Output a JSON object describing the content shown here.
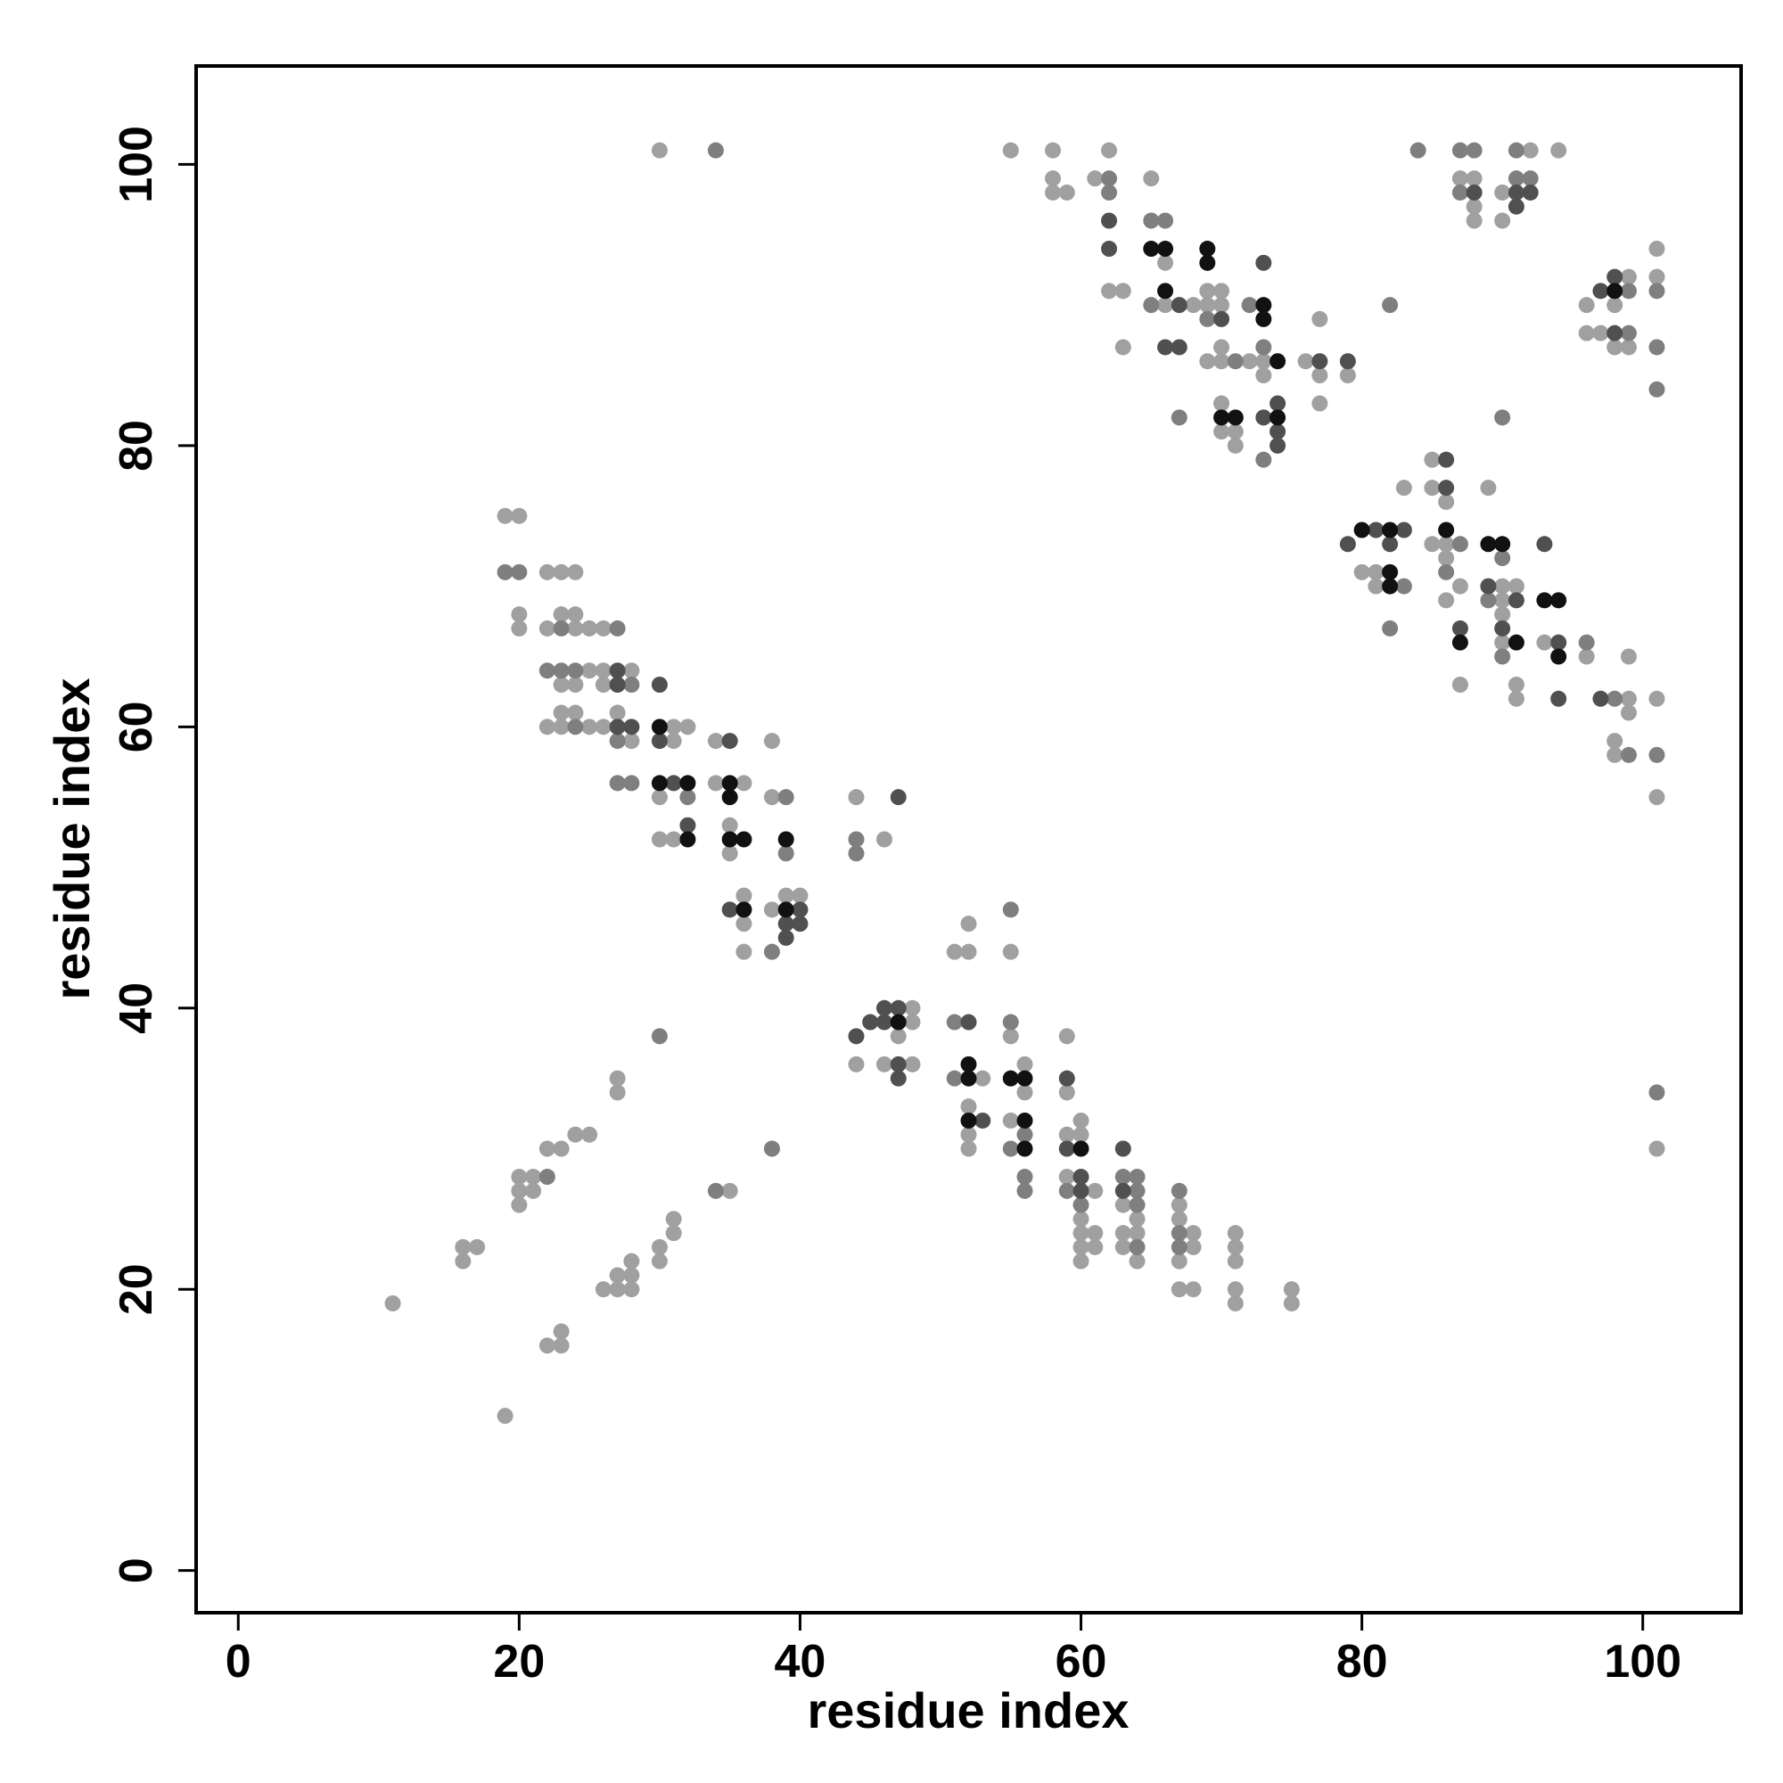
{
  "chart_data": {
    "type": "scatter",
    "x_label": "residue index",
    "y_label": "residue index",
    "xlim": [
      -3,
      107
    ],
    "ylim": [
      -3,
      107
    ],
    "xticks": [
      0,
      20,
      40,
      60,
      80,
      100
    ],
    "yticks": [
      0,
      20,
      40,
      60,
      80,
      100
    ],
    "grid": false,
    "series": [
      {
        "color": "#a0a0a0",
        "x": [
          30,
          55,
          58,
          62,
          92,
          94,
          58,
          61,
          65,
          87,
          88,
          58,
          59,
          90,
          88,
          88,
          90,
          101,
          66,
          99,
          101,
          62,
          63,
          69,
          70,
          66,
          68,
          69,
          70,
          96,
          98,
          77,
          96,
          97,
          63,
          70,
          98,
          99,
          69,
          70,
          72,
          73,
          76,
          73,
          77,
          79,
          70,
          77,
          70,
          71,
          71,
          85,
          83,
          85,
          89,
          86,
          19,
          20,
          85,
          86,
          86,
          22,
          23,
          24,
          80,
          81,
          81,
          87,
          90,
          91,
          86,
          90,
          20,
          23,
          24,
          90,
          20,
          22,
          24,
          25,
          26,
          90,
          93,
          96,
          99,
          25,
          26,
          28,
          23,
          24,
          26,
          87,
          91,
          91,
          99,
          101,
          23,
          24,
          27,
          99,
          22,
          23,
          25,
          26,
          31,
          32,
          28,
          31,
          34,
          38,
          98,
          98,
          34,
          36,
          30,
          38,
          44,
          101,
          35,
          30,
          31,
          46,
          35,
          36,
          39,
          40,
          38,
          36,
          52,
          36,
          51,
          52,
          55,
          48,
          48,
          47,
          55,
          59,
          44,
          46,
          48,
          56,
          27,
          53,
          27,
          56,
          59,
          52,
          55,
          60,
          52,
          59,
          60,
          24,
          25,
          22,
          23,
          52,
          101,
          20,
          21,
          59,
          20,
          21,
          35,
          61,
          20,
          63,
          67,
          31,
          60,
          64,
          67,
          31,
          60,
          61,
          63,
          64,
          68,
          71,
          16,
          17,
          30,
          60,
          61,
          63,
          68,
          71,
          16,
          30,
          28,
          60,
          64,
          67,
          71,
          27,
          28,
          26,
          27,
          28,
          67,
          68,
          71,
          75,
          11,
          71,
          75,
          23,
          22,
          23,
          19
        ],
        "y": [
          101,
          101,
          101,
          101,
          101,
          101,
          99,
          99,
          99,
          99,
          99,
          98,
          98,
          98,
          97,
          96,
          96,
          94,
          93,
          92,
          92,
          91,
          91,
          91,
          91,
          90,
          90,
          90,
          90,
          90,
          90,
          89,
          88,
          88,
          87,
          87,
          87,
          87,
          86,
          86,
          86,
          86,
          86,
          85,
          85,
          85,
          83,
          83,
          81,
          81,
          80,
          79,
          77,
          77,
          77,
          76,
          75,
          75,
          73,
          73,
          72,
          71,
          71,
          71,
          71,
          71,
          70,
          70,
          70,
          70,
          69,
          69,
          68,
          68,
          68,
          68,
          67,
          67,
          67,
          67,
          67,
          66,
          66,
          65,
          65,
          64,
          64,
          64,
          63,
          63,
          63,
          63,
          63,
          62,
          62,
          62,
          61,
          61,
          61,
          61,
          60,
          60,
          60,
          60,
          60,
          60,
          59,
          59,
          59,
          59,
          59,
          58,
          56,
          56,
          55,
          55,
          55,
          55,
          53,
          52,
          52,
          52,
          51,
          48,
          48,
          48,
          47,
          46,
          46,
          44,
          44,
          44,
          44,
          40,
          39,
          38,
          38,
          38,
          36,
          36,
          36,
          36,
          35,
          35,
          34,
          34,
          34,
          33,
          32,
          32,
          31,
          31,
          31,
          31,
          31,
          30,
          30,
          30,
          30,
          28,
          28,
          28,
          27,
          27,
          27,
          27,
          26,
          26,
          26,
          25,
          25,
          25,
          25,
          24,
          24,
          24,
          24,
          24,
          24,
          24,
          23,
          23,
          23,
          23,
          23,
          23,
          23,
          23,
          22,
          22,
          22,
          22,
          22,
          22,
          22,
          21,
          21,
          20,
          20,
          20,
          20,
          20,
          20,
          20,
          19,
          19,
          19,
          17,
          16,
          16,
          11
        ]
      },
      {
        "color": "#7f7f7f",
        "x": [
          34,
          84,
          87,
          88,
          91,
          62,
          91,
          92,
          87,
          62,
          65,
          66,
          99,
          101,
          65,
          72,
          82,
          69,
          99,
          73,
          101,
          71,
          101,
          67,
          90,
          73,
          87,
          90,
          19,
          20,
          86,
          83,
          89,
          23,
          27,
          82,
          90,
          96,
          22,
          23,
          24,
          28,
          98,
          24,
          27,
          99,
          101,
          27,
          28,
          32,
          39,
          44,
          39,
          44,
          55,
          38,
          51,
          55,
          30,
          51,
          101,
          56,
          38,
          55,
          22,
          56,
          63,
          64,
          34,
          56,
          59,
          64,
          67,
          60,
          64,
          67,
          64,
          67
        ],
        "y": [
          101,
          101,
          101,
          101,
          101,
          99,
          99,
          99,
          98,
          98,
          96,
          96,
          91,
          91,
          90,
          90,
          90,
          89,
          88,
          87,
          87,
          86,
          84,
          82,
          82,
          79,
          73,
          72,
          71,
          71,
          71,
          70,
          69,
          67,
          67,
          67,
          65,
          66,
          64,
          64,
          64,
          63,
          62,
          60,
          59,
          58,
          58,
          56,
          56,
          55,
          55,
          52,
          51,
          51,
          47,
          44,
          39,
          39,
          38,
          35,
          34,
          31,
          30,
          30,
          28,
          28,
          28,
          28,
          27,
          27,
          27,
          27,
          27,
          26,
          26,
          24,
          23,
          23
        ]
      },
      {
        "color": "#505050",
        "x": [
          88,
          91,
          92,
          91,
          62,
          62,
          73,
          98,
          97,
          67,
          70,
          98,
          66,
          67,
          77,
          79,
          74,
          73,
          74,
          74,
          86,
          86,
          81,
          83,
          79,
          82,
          93,
          89,
          91,
          87,
          90,
          94,
          27,
          27,
          30,
          94,
          97,
          27,
          28,
          30,
          35,
          31,
          47,
          32,
          35,
          40,
          39,
          40,
          39,
          46,
          47,
          45,
          46,
          52,
          44,
          47,
          47,
          59,
          53,
          59,
          63,
          60,
          60,
          63
        ],
        "y": [
          98,
          98,
          98,
          97,
          96,
          94,
          93,
          92,
          91,
          90,
          89,
          88,
          87,
          87,
          86,
          86,
          83,
          82,
          81,
          80,
          79,
          77,
          74,
          74,
          73,
          73,
          73,
          70,
          69,
          67,
          67,
          66,
          64,
          63,
          63,
          62,
          62,
          60,
          60,
          59,
          59,
          56,
          55,
          53,
          47,
          47,
          46,
          46,
          45,
          40,
          40,
          39,
          39,
          39,
          38,
          36,
          35,
          35,
          32,
          30,
          30,
          28,
          27,
          27
        ]
      },
      {
        "color": "#111111",
        "x": [
          65,
          66,
          69,
          69,
          66,
          98,
          73,
          73,
          74,
          70,
          71,
          74,
          80,
          82,
          86,
          89,
          90,
          82,
          82,
          93,
          94,
          87,
          91,
          94,
          30,
          30,
          32,
          35,
          35,
          32,
          35,
          36,
          39,
          36,
          39,
          47,
          52,
          52,
          55,
          56,
          52,
          56,
          56,
          60
        ],
        "y": [
          94,
          94,
          94,
          93,
          91,
          91,
          90,
          89,
          86,
          82,
          82,
          82,
          74,
          74,
          74,
          73,
          73,
          71,
          70,
          69,
          69,
          66,
          66,
          65,
          60,
          56,
          56,
          56,
          55,
          52,
          52,
          52,
          52,
          47,
          47,
          39,
          36,
          35,
          35,
          35,
          32,
          32,
          30,
          30
        ]
      }
    ]
  }
}
